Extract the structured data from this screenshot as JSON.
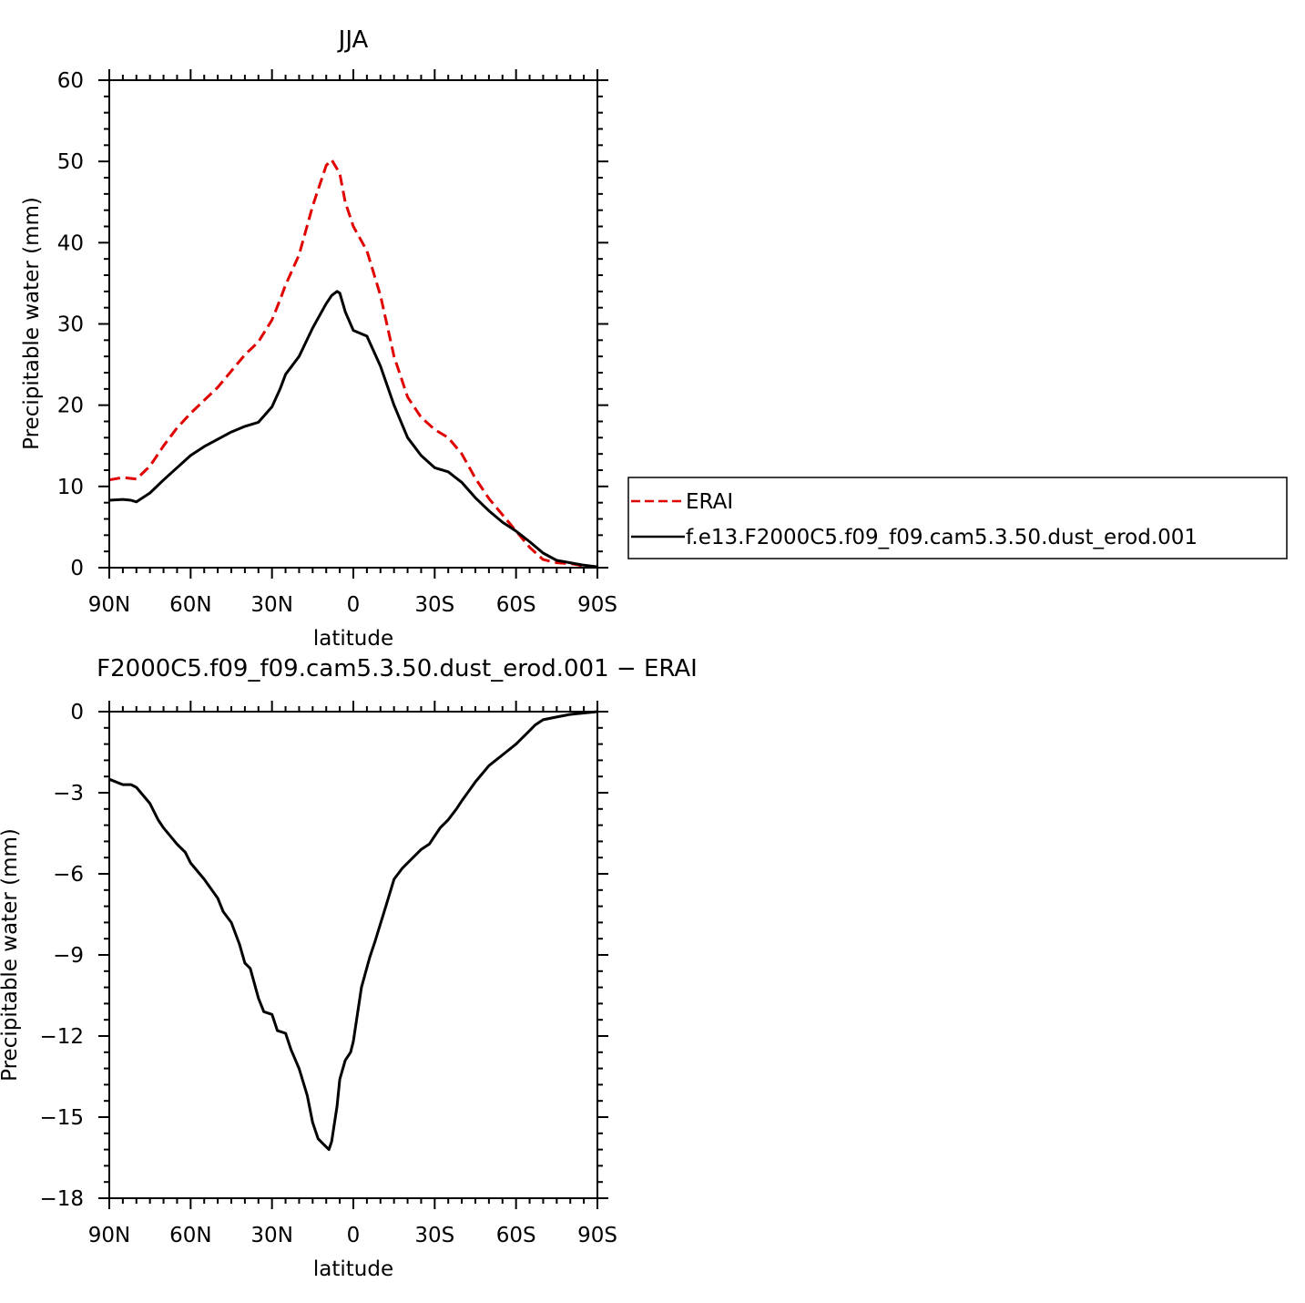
{
  "chart_data": [
    {
      "type": "line",
      "title": "JJA",
      "xlabel": "latitude",
      "ylabel": "Precipitable water (mm)",
      "xlim": [
        90,
        -90
      ],
      "ylim": [
        0,
        60
      ],
      "xticks": [
        90,
        60,
        30,
        0,
        -30,
        -60,
        -90
      ],
      "xtick_labels": [
        "90N",
        "60N",
        "30N",
        "0",
        "30S",
        "60S",
        "90S"
      ],
      "yticks": [
        0,
        10,
        20,
        30,
        40,
        50,
        60
      ],
      "ytick_labels": [
        "0",
        "10",
        "20",
        "30",
        "40",
        "50",
        "60"
      ],
      "legend_position": "right",
      "series": [
        {
          "name": "ERAI",
          "color": "#e00000",
          "dash": "dashed",
          "x": [
            90,
            85,
            80,
            75,
            70,
            65,
            60,
            55,
            50,
            45,
            40,
            35,
            30,
            27,
            25,
            20,
            15,
            10,
            8,
            5,
            3,
            0,
            -5,
            -10,
            -15,
            -20,
            -25,
            -30,
            -35,
            -40,
            -45,
            -50,
            -55,
            -60,
            -65,
            -70,
            -75,
            -80,
            -85,
            -90
          ],
          "y": [
            10.8,
            11.1,
            10.9,
            12.5,
            15.0,
            17.2,
            19.0,
            20.6,
            22.2,
            24.2,
            26.2,
            27.8,
            30.5,
            33.0,
            34.8,
            38.5,
            44.5,
            49.5,
            50.2,
            48.5,
            45.0,
            42.0,
            39.0,
            33.5,
            26.0,
            21.0,
            18.5,
            17.0,
            16.0,
            14.0,
            11.0,
            8.5,
            6.5,
            4.5,
            2.5,
            1.0,
            0.6,
            0.5,
            0.2,
            0.1
          ]
        },
        {
          "name": "f.e13.F2000C5.f09_f09.cam5.3.50.dust_erod.001",
          "color": "#000000",
          "dash": "solid",
          "x": [
            90,
            85,
            82,
            80,
            75,
            70,
            65,
            60,
            55,
            50,
            45,
            40,
            35,
            30,
            27,
            25,
            20,
            15,
            10,
            8,
            6,
            5,
            3,
            0,
            -5,
            -10,
            -15,
            -20,
            -25,
            -30,
            -35,
            -40,
            -45,
            -50,
            -55,
            -60,
            -65,
            -70,
            -75,
            -80,
            -85,
            -90
          ],
          "y": [
            8.3,
            8.4,
            8.3,
            8.1,
            9.2,
            10.8,
            12.3,
            13.8,
            14.9,
            15.8,
            16.7,
            17.4,
            17.9,
            19.8,
            22.0,
            23.8,
            26.0,
            29.5,
            32.5,
            33.5,
            34.0,
            33.8,
            31.5,
            29.2,
            28.5,
            24.8,
            20.0,
            16.0,
            13.8,
            12.3,
            11.8,
            10.5,
            8.6,
            7.0,
            5.6,
            4.5,
            3.2,
            1.8,
            0.9,
            0.6,
            0.3,
            0.1
          ]
        }
      ]
    },
    {
      "type": "line",
      "title": "F2000C5.f09_f09.cam5.3.50.dust_erod.001 − ERAI",
      "xlabel": "latitude",
      "ylabel": "Precipitable water (mm)",
      "xlim": [
        90,
        -90
      ],
      "ylim": [
        -18,
        0
      ],
      "xticks": [
        90,
        60,
        30,
        0,
        -30,
        -60,
        -90
      ],
      "xtick_labels": [
        "90N",
        "60N",
        "30N",
        "0",
        "30S",
        "60S",
        "90S"
      ],
      "yticks": [
        0,
        -3,
        -6,
        -9,
        -12,
        -15,
        -18
      ],
      "ytick_labels": [
        "0",
        "−3",
        "−6",
        "−9",
        "−12",
        "−15",
        "−18"
      ],
      "series": [
        {
          "name": "",
          "color": "#000000",
          "dash": "solid",
          "x": [
            90,
            85,
            82,
            80,
            75,
            72,
            70,
            65,
            62,
            60,
            55,
            50,
            48,
            45,
            42,
            40,
            38,
            35,
            33,
            30,
            28,
            25,
            23,
            20,
            17,
            15,
            13,
            11,
            9,
            8,
            6,
            5,
            3,
            1,
            0,
            -3,
            -6,
            -8,
            -12,
            -15,
            -18,
            -20,
            -22,
            -25,
            -28,
            -30,
            -32,
            -35,
            -38,
            -40,
            -45,
            -50,
            -55,
            -60,
            -65,
            -67,
            -70,
            -75,
            -80,
            -85,
            -90
          ],
          "y": [
            -2.5,
            -2.7,
            -2.7,
            -2.8,
            -3.4,
            -4.0,
            -4.3,
            -4.9,
            -5.2,
            -5.6,
            -6.2,
            -6.9,
            -7.4,
            -7.8,
            -8.6,
            -9.3,
            -9.5,
            -10.6,
            -11.1,
            -11.2,
            -11.8,
            -11.9,
            -12.5,
            -13.2,
            -14.2,
            -15.2,
            -15.8,
            -16.0,
            -16.2,
            -15.9,
            -14.6,
            -13.6,
            -12.9,
            -12.6,
            -12.2,
            -10.2,
            -9.1,
            -8.5,
            -7.2,
            -6.2,
            -5.8,
            -5.6,
            -5.4,
            -5.1,
            -4.9,
            -4.6,
            -4.3,
            -4.0,
            -3.6,
            -3.3,
            -2.6,
            -2.0,
            -1.6,
            -1.2,
            -0.7,
            -0.5,
            -0.3,
            -0.2,
            -0.1,
            -0.05,
            0.0
          ]
        }
      ]
    }
  ]
}
